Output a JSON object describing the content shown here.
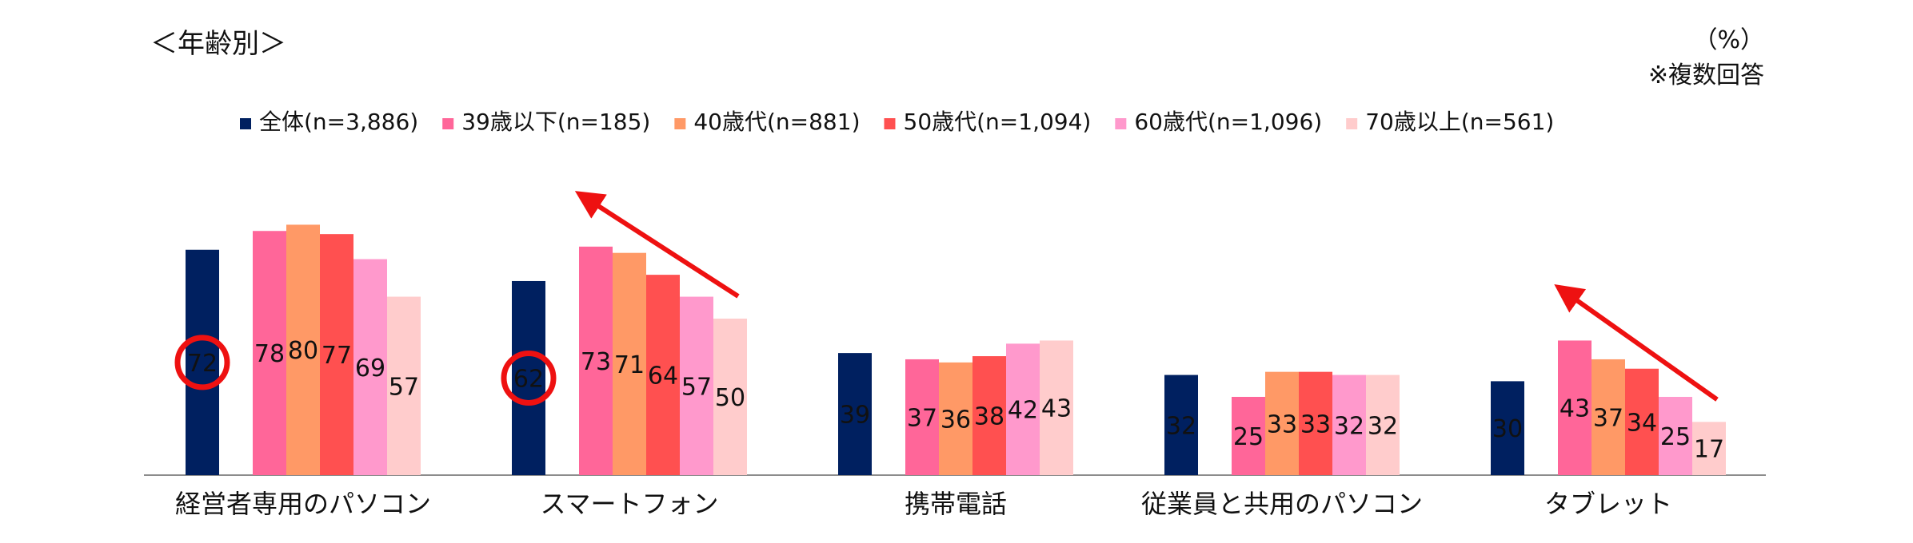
{
  "chart_data": {
    "type": "bar",
    "title": "＜年齢別＞",
    "unit_label": "（%）",
    "note": "※複数回答",
    "categories": [
      "経営者専用のパソコン",
      "スマートフォン",
      "携帯電話",
      "従業員と共用のパソコン",
      "タブレット"
    ],
    "series": [
      {
        "name": "全体(n=3,886)",
        "color": "#002060",
        "values": [
          72,
          62,
          39,
          32,
          30
        ]
      },
      {
        "name": "39歳以下(n=185)",
        "color": "#FF6699",
        "values": [
          78,
          73,
          37,
          25,
          43
        ]
      },
      {
        "name": "40歳代(n=881)",
        "color": "#FF9966",
        "values": [
          80,
          71,
          36,
          33,
          37
        ]
      },
      {
        "name": "50歳代(n=1,094)",
        "color": "#FF5050",
        "values": [
          77,
          64,
          38,
          33,
          34
        ]
      },
      {
        "name": "60歳代(n=1,096)",
        "color": "#FF99CC",
        "values": [
          69,
          57,
          42,
          32,
          25
        ]
      },
      {
        "name": "70歳以上(n=561)",
        "color": "#FFCCCC",
        "values": [
          57,
          50,
          43,
          32,
          17
        ]
      }
    ],
    "ylim": [
      0,
      80
    ],
    "gridlines": false,
    "legend_position": "top",
    "annotations": {
      "circled": [
        {
          "category_index": 0,
          "series_index": 0
        },
        {
          "category_index": 1,
          "series_index": 0
        }
      ],
      "arrows": [
        {
          "category_index": 1,
          "direction": "up-left",
          "color": "#EE1111"
        },
        {
          "category_index": 4,
          "direction": "up-left",
          "color": "#EE1111"
        }
      ]
    }
  }
}
